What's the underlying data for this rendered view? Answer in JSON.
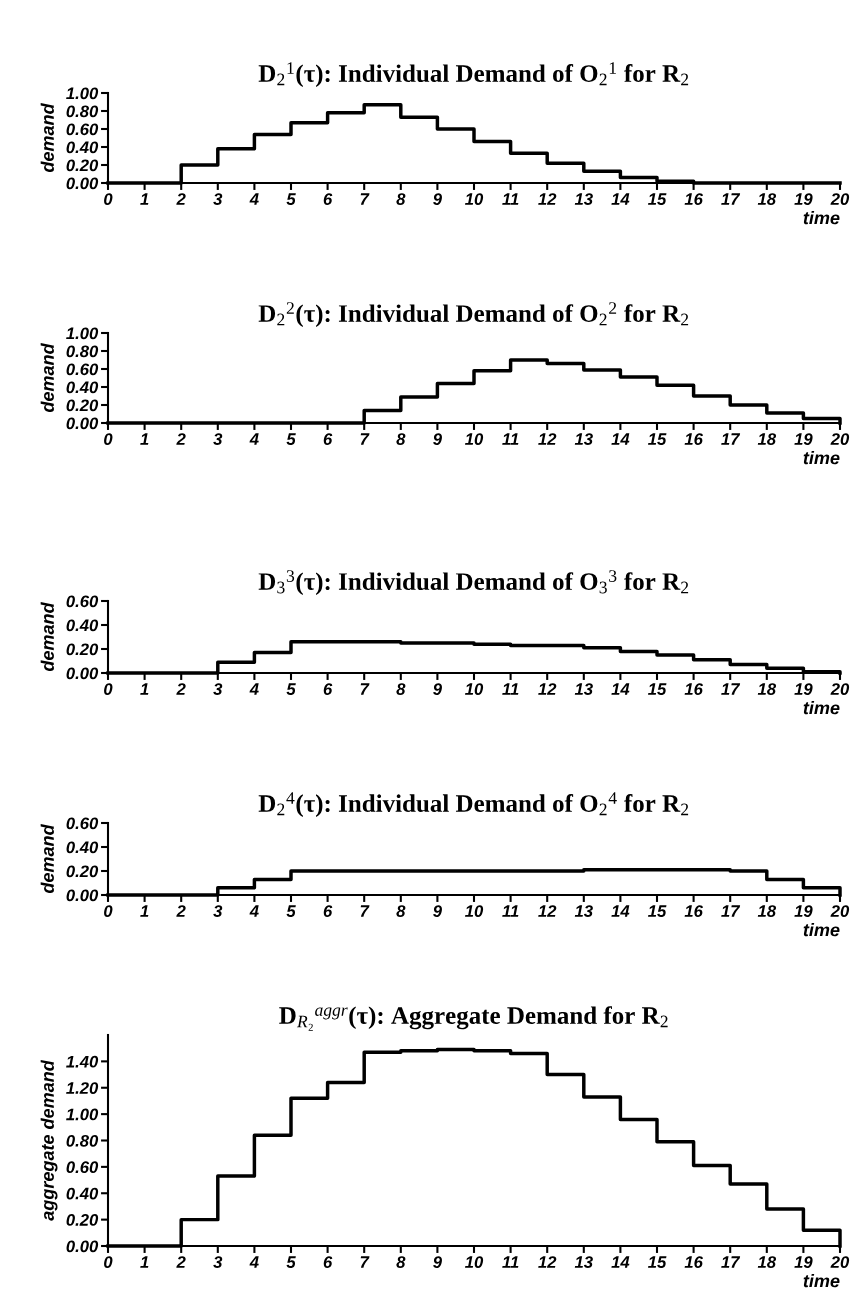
{
  "chart_data": [
    {
      "type": "step",
      "title": "D$_{2}$$^{1}$(τ): Individual Demand of O$_{2}$$^{1}$ for R$_{2}$",
      "xlabel": "time",
      "ylabel": "demand",
      "color": "#000000",
      "x": [
        0,
        1,
        2,
        3,
        4,
        5,
        6,
        7,
        8,
        9,
        10,
        11,
        12,
        13,
        14,
        15,
        16,
        17,
        18,
        19,
        20
      ],
      "values": [
        0,
        0,
        0.2,
        0.38,
        0.54,
        0.67,
        0.78,
        0.87,
        0.73,
        0.6,
        0.46,
        0.33,
        0.22,
        0.13,
        0.06,
        0.02,
        0,
        0,
        0,
        0,
        0
      ],
      "xlim": [
        0,
        20
      ],
      "xticks": [
        0,
        1,
        2,
        3,
        4,
        5,
        6,
        7,
        8,
        9,
        10,
        11,
        12,
        13,
        14,
        15,
        16,
        17,
        18,
        19,
        20
      ],
      "ylim": [
        0,
        1
      ],
      "yticks": [
        {
          "value": 0,
          "label": "0.00"
        },
        {
          "value": 0.2,
          "label": "0.20"
        },
        {
          "value": 0.4,
          "label": "0.40"
        },
        {
          "value": 0.6,
          "label": "0.60"
        },
        {
          "value": 0.8,
          "label": "0.80"
        },
        {
          "value": 1,
          "label": "1.00"
        }
      ]
    },
    {
      "type": "step",
      "title": "D$_{2}$$^{2}$(τ): Individual Demand of O$_{2}$$^{2}$ for R$_{2}$",
      "xlabel": "time",
      "ylabel": "demand",
      "color": "#000000",
      "x": [
        0,
        1,
        2,
        3,
        4,
        5,
        6,
        7,
        8,
        9,
        10,
        11,
        12,
        13,
        14,
        15,
        16,
        17,
        18,
        19,
        20
      ],
      "values": [
        0,
        0,
        0,
        0,
        0,
        0,
        0,
        0.14,
        0.29,
        0.44,
        0.58,
        0.7,
        0.66,
        0.59,
        0.51,
        0.42,
        0.3,
        0.2,
        0.11,
        0.05,
        0
      ],
      "xlim": [
        0,
        20
      ],
      "xticks": [
        0,
        1,
        2,
        3,
        4,
        5,
        6,
        7,
        8,
        9,
        10,
        11,
        12,
        13,
        14,
        15,
        16,
        17,
        18,
        19,
        20
      ],
      "ylim": [
        0,
        1
      ],
      "yticks": [
        {
          "value": 0,
          "label": "0.00"
        },
        {
          "value": 0.2,
          "label": "0.20"
        },
        {
          "value": 0.4,
          "label": "0.40"
        },
        {
          "value": 0.6,
          "label": "0.60"
        },
        {
          "value": 0.8,
          "label": "0.80"
        },
        {
          "value": 1,
          "label": "1.00"
        }
      ]
    },
    {
      "type": "step",
      "title": "D$_{3}$$^{3}$(τ): Individual Demand of O$_{3}$$^{3}$ for R$_{2}$",
      "xlabel": "time",
      "ylabel": "demand",
      "color": "#000000",
      "x": [
        0,
        1,
        2,
        3,
        4,
        5,
        6,
        7,
        8,
        9,
        10,
        11,
        12,
        13,
        14,
        15,
        16,
        17,
        18,
        19,
        20
      ],
      "values": [
        0,
        0,
        0,
        0.09,
        0.17,
        0.26,
        0.26,
        0.26,
        0.25,
        0.25,
        0.24,
        0.23,
        0.23,
        0.21,
        0.18,
        0.15,
        0.11,
        0.07,
        0.04,
        0.01,
        0
      ],
      "xlim": [
        0,
        20
      ],
      "xticks": [
        0,
        1,
        2,
        3,
        4,
        5,
        6,
        7,
        8,
        9,
        10,
        11,
        12,
        13,
        14,
        15,
        16,
        17,
        18,
        19,
        20
      ],
      "ylim": [
        0,
        0.6
      ],
      "yticks": [
        {
          "value": 0,
          "label": "0.00"
        },
        {
          "value": 0.2,
          "label": "0.20"
        },
        {
          "value": 0.4,
          "label": "0.40"
        },
        {
          "value": 0.6,
          "label": "0.60"
        }
      ]
    },
    {
      "type": "step",
      "title": "D$_{2}$$^{4}$(τ): Individual Demand of O$_{2}$$^{4}$ for R$_{2}$",
      "xlabel": "time",
      "ylabel": "demand",
      "color": "#000000",
      "x": [
        0,
        1,
        2,
        3,
        4,
        5,
        6,
        7,
        8,
        9,
        10,
        11,
        12,
        13,
        14,
        15,
        16,
        17,
        18,
        19,
        20
      ],
      "values": [
        0,
        0,
        0,
        0.06,
        0.13,
        0.2,
        0.2,
        0.2,
        0.2,
        0.2,
        0.2,
        0.2,
        0.2,
        0.21,
        0.21,
        0.21,
        0.21,
        0.2,
        0.13,
        0.06,
        0
      ],
      "xlim": [
        0,
        20
      ],
      "xticks": [
        0,
        1,
        2,
        3,
        4,
        5,
        6,
        7,
        8,
        9,
        10,
        11,
        12,
        13,
        14,
        15,
        16,
        17,
        18,
        19,
        20
      ],
      "ylim": [
        0,
        0.6
      ],
      "yticks": [
        {
          "value": 0,
          "label": "0.00"
        },
        {
          "value": 0.2,
          "label": "0.20"
        },
        {
          "value": 0.4,
          "label": "0.40"
        },
        {
          "value": 0.6,
          "label": "0.60"
        }
      ]
    },
    {
      "type": "step",
      "title": "D$_{R₂}$$^{aggr}$(τ): Aggregate Demand for R$_{2}$",
      "xlabel": "time",
      "ylabel": "aggregate demand",
      "color": "#000000",
      "x": [
        0,
        1,
        2,
        3,
        4,
        5,
        6,
        7,
        8,
        9,
        10,
        11,
        12,
        13,
        14,
        15,
        16,
        17,
        18,
        19,
        20
      ],
      "values": [
        0,
        0,
        0.2,
        0.53,
        0.84,
        1.12,
        1.24,
        1.47,
        1.48,
        1.49,
        1.48,
        1.46,
        1.3,
        1.13,
        0.96,
        0.79,
        0.61,
        0.47,
        0.28,
        0.12,
        0
      ],
      "xlim": [
        0,
        20
      ],
      "xticks": [
        0,
        1,
        2,
        3,
        4,
        5,
        6,
        7,
        8,
        9,
        10,
        11,
        12,
        13,
        14,
        15,
        16,
        17,
        18,
        19,
        20
      ],
      "ylim": [
        0,
        1.6
      ],
      "yticks": [
        {
          "value": 0,
          "label": "0.00"
        },
        {
          "value": 0.2,
          "label": "0.20"
        },
        {
          "value": 0.4,
          "label": "0.40"
        },
        {
          "value": 0.6,
          "label": "0.60"
        },
        {
          "value": 0.8,
          "label": "0.80"
        },
        {
          "value": 1,
          "label": "1.00"
        },
        {
          "value": 1.2,
          "label": "1.20"
        },
        {
          "value": 1.4,
          "label": "1.40"
        }
      ]
    }
  ]
}
